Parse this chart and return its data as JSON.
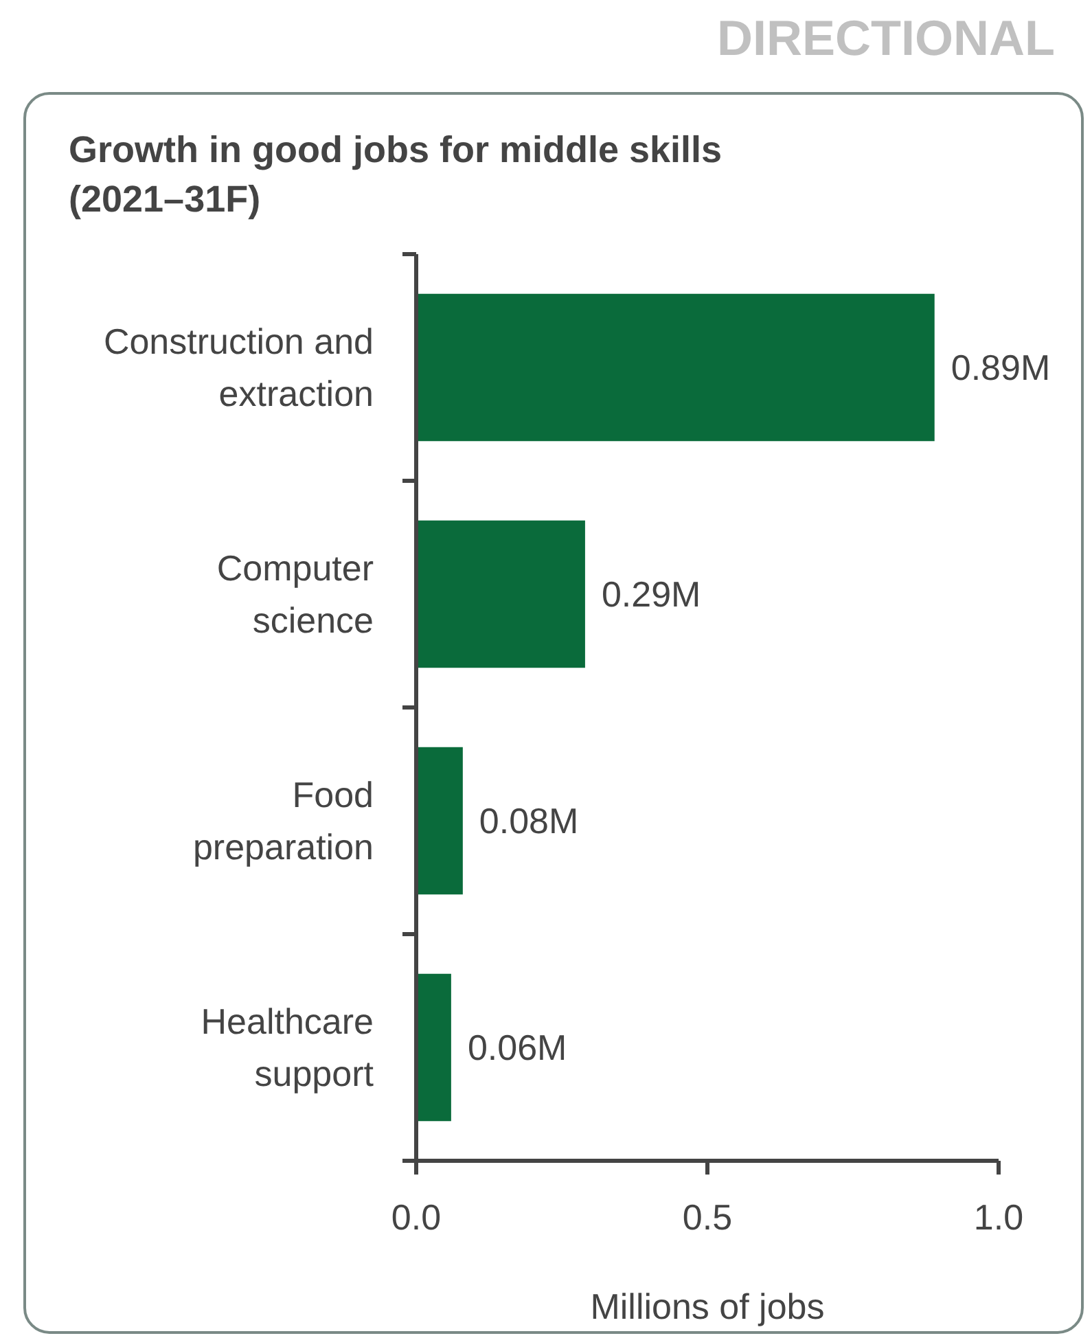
{
  "chart_data": {
    "type": "bar",
    "orientation": "horizontal",
    "title": "Growth in good jobs for middle skills (2021–31F)",
    "xlabel": "Millions of jobs",
    "annotations": [
      "DIRECTIONAL"
    ],
    "categories": [
      "Construction and extraction",
      "Computer science",
      "Food preparation",
      "Healthcare support"
    ],
    "values": [
      0.89,
      0.29,
      0.08,
      0.06
    ],
    "color": "#0a6b3b",
    "value_labels": [
      "0.89M",
      "0.29M",
      "0.08M",
      "0.06M"
    ],
    "xlim": [
      0,
      1
    ],
    "xticks": [
      {
        "value": 0,
        "label": "0.0"
      },
      {
        "value": 0.5,
        "label": "0.5"
      },
      {
        "value": 1,
        "label": "1.0"
      }
    ],
    "grid": false
  }
}
